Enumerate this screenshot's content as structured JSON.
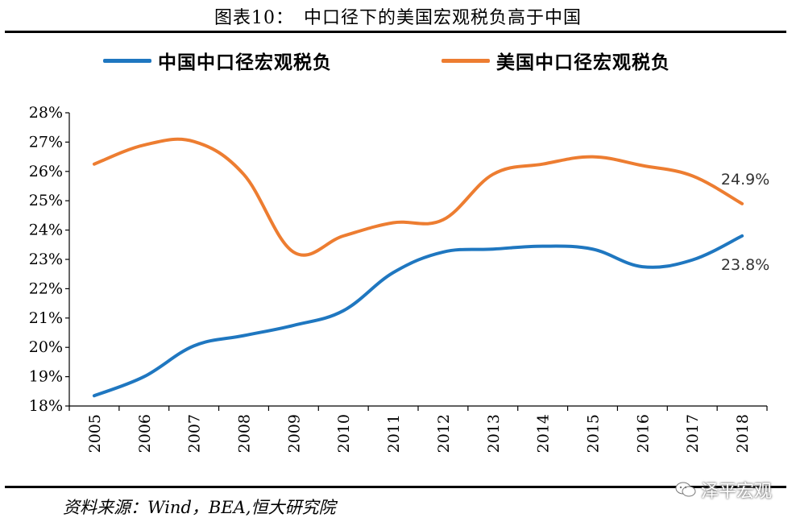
{
  "header": {
    "title": "图表10：　中口径下的美国宏观税负高于中国"
  },
  "footer": {
    "source": "资料来源：Wind，BEA,恒大研究院",
    "watermark": "泽平宏观",
    "watermark_icon": "wechat-icon"
  },
  "colors": {
    "china": "#1F77C0",
    "usa": "#ED7D31"
  },
  "chart_data": {
    "type": "line",
    "title": "",
    "xlabel": "",
    "ylabel": "",
    "x": [
      "2005",
      "2006",
      "2007",
      "2008",
      "2009",
      "2010",
      "2011",
      "2012",
      "2013",
      "2014",
      "2015",
      "2016",
      "2017",
      "2018"
    ],
    "ylim": [
      18,
      28
    ],
    "yticks": [
      "18%",
      "19%",
      "20%",
      "21%",
      "22%",
      "23%",
      "24%",
      "25%",
      "26%",
      "27%",
      "28%"
    ],
    "grid": false,
    "legend_position": "top",
    "series": [
      {
        "name": "中国中口径宏观税负",
        "color": "#1F77C0",
        "values": [
          18.35,
          19.0,
          20.05,
          20.4,
          20.75,
          21.25,
          22.55,
          23.25,
          23.35,
          23.45,
          23.35,
          22.75,
          22.98,
          23.8
        ]
      },
      {
        "name": "美国中口径宏观税负",
        "color": "#ED7D31",
        "values": [
          26.25,
          26.9,
          27.02,
          25.9,
          23.25,
          23.8,
          24.25,
          24.35,
          25.9,
          26.25,
          26.5,
          26.2,
          25.85,
          24.9
        ]
      }
    ],
    "annotations": [
      {
        "series": 1,
        "index": 13,
        "text": "24.9%"
      },
      {
        "series": 0,
        "index": 13,
        "text": "23.8%"
      }
    ]
  }
}
